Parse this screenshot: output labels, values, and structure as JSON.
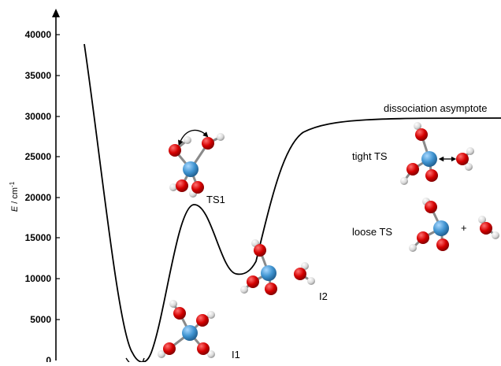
{
  "axis": {
    "ylabel_var": "E",
    "ylabel_unit": " / cm",
    "ylabel_sup": "-1",
    "ticks": [
      "40000",
      "35000",
      "30000",
      "25000",
      "20000",
      "15000",
      "10000",
      "5000",
      "0"
    ]
  },
  "labels": {
    "asymptote": "dissociation asymptote",
    "ts1": "TS1",
    "i1": "I1",
    "i2": "I2",
    "tight_ts": "tight TS",
    "loose_ts": "loose TS",
    "plus": "+"
  },
  "colors": {
    "curve": "#000000",
    "oxygen": "#d40000",
    "hydrogen": "#e0e0e0",
    "center_atom": "#3f93d0",
    "bond": "#8a8a8a"
  }
}
